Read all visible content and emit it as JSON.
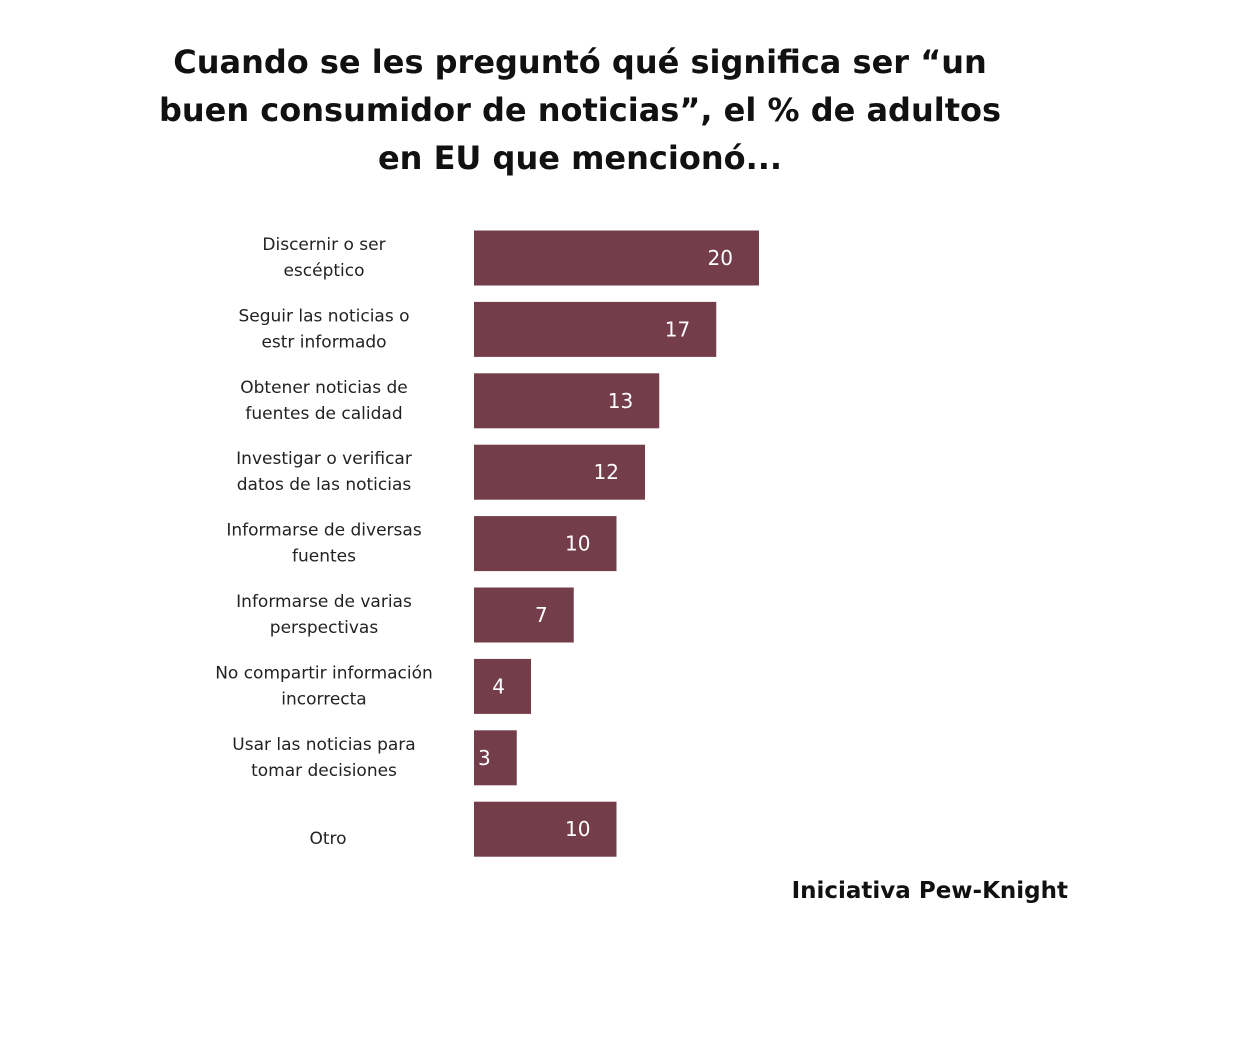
{
  "chart_data": {
    "type": "bar",
    "orientation": "horizontal",
    "title": "Cuando se les preguntó qué significa ser “un buen consumidor de noticias”, el % de adultos en EU que mencionó...",
    "categories": [
      [
        "Discernir o ser",
        "escéptico"
      ],
      [
        "Seguir las noticias o",
        "estr informado"
      ],
      [
        "Obtener noticias de",
        "fuentes de calidad"
      ],
      [
        "Investigar o verificar",
        "datos de las noticias"
      ],
      [
        "Informarse de diversas",
        "fuentes"
      ],
      [
        "Informarse de varias",
        "perspectivas"
      ],
      [
        "No compartir información",
        "incorrecta"
      ],
      [
        "Usar las noticias para",
        "tomar decisiones"
      ],
      [
        "Otro"
      ]
    ],
    "values": [
      20,
      17,
      13,
      12,
      10,
      7,
      4,
      3,
      10
    ],
    "xlim": [
      0,
      20
    ],
    "bar_color": "#733d49",
    "value_label_color": "#ffffff",
    "grid": false,
    "legend": "none"
  },
  "source": "Iniciativa Pew-Knight"
}
